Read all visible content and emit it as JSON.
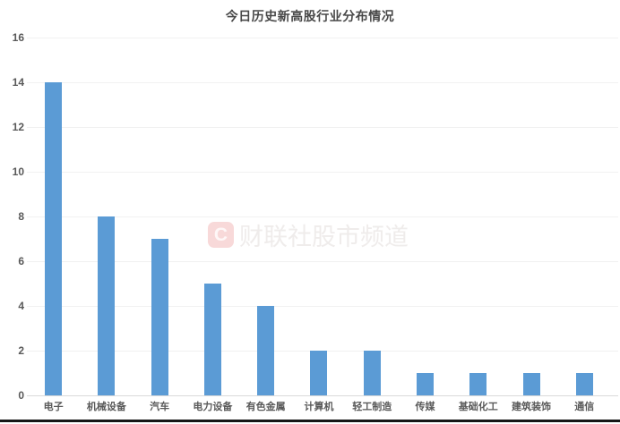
{
  "chart_data": {
    "type": "bar",
    "title": "今日历史新高股行业分布情况",
    "categories": [
      "电子",
      "机械设备",
      "汽车",
      "电力设备",
      "有色金属",
      "计算机",
      "轻工制造",
      "传媒",
      "基础化工",
      "建筑装饰",
      "通信"
    ],
    "values": [
      14,
      8,
      7,
      5,
      4,
      2,
      2,
      1,
      1,
      1,
      1
    ],
    "xlabel": "",
    "ylabel": "",
    "ylim": [
      0,
      16
    ],
    "ytick_step": 2,
    "yticks": [
      0,
      2,
      4,
      6,
      8,
      10,
      12,
      14,
      16
    ],
    "grid": true,
    "legend_position": "none",
    "bar_color": "#5B9BD5"
  },
  "colors": {
    "bar": "#5B9BD5",
    "gridline": "#f1f1f1",
    "axis_line": "#d9d9d9",
    "tick_label": "#595959",
    "title": "#484848",
    "watermark_text": "#efeceb",
    "watermark_logo_bg": "#f8d9d9"
  },
  "watermark": {
    "logo_letter": "C",
    "text": "财联社股市频道"
  }
}
